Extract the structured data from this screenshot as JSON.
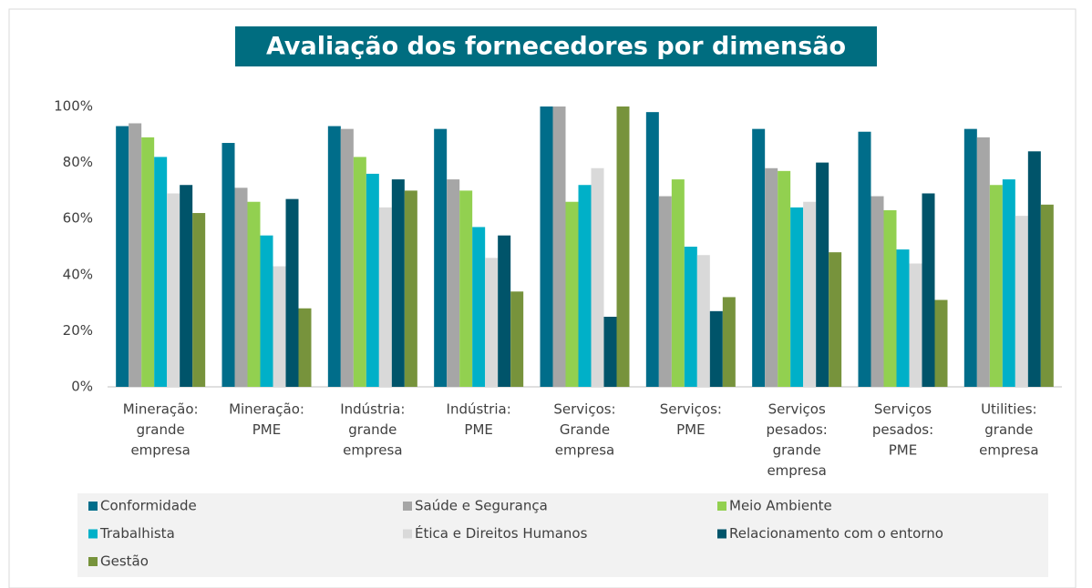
{
  "chart_data": {
    "type": "bar",
    "title": "Avaliação dos fornecedores por dimensão",
    "categories": [
      [
        "Mineração:",
        "grande",
        "empresa"
      ],
      [
        "Mineração:",
        "PME"
      ],
      [
        "Indústria:",
        "grande",
        "empresa"
      ],
      [
        "Indústria:",
        "PME"
      ],
      [
        "Serviços:",
        "Grande",
        "empresa"
      ],
      [
        "Serviços:",
        "PME"
      ],
      [
        "Serviços",
        "pesados:",
        "grande",
        "empresa"
      ],
      [
        "Serviços",
        "pesados:",
        "PME"
      ],
      [
        "Utilities:",
        "grande",
        "empresa"
      ]
    ],
    "series": [
      {
        "name": "Conformidade",
        "color": "#006d8a",
        "values": [
          93,
          87,
          93,
          92,
          100,
          98,
          92,
          91,
          92
        ]
      },
      {
        "name": "Saúde e Segurança",
        "color": "#a6a6a6",
        "values": [
          94,
          71,
          92,
          74,
          100,
          68,
          78,
          68,
          89
        ]
      },
      {
        "name": "Meio Ambiente",
        "color": "#92d050",
        "values": [
          89,
          66,
          82,
          70,
          66,
          74,
          77,
          63,
          72
        ]
      },
      {
        "name": "Trabalhista",
        "color": "#00b0c8",
        "values": [
          82,
          54,
          76,
          57,
          72,
          50,
          64,
          49,
          74
        ]
      },
      {
        "name": "Ética e Direitos Humanos",
        "color": "#d9d9d9",
        "values": [
          69,
          43,
          64,
          46,
          78,
          47,
          66,
          44,
          61
        ]
      },
      {
        "name": "Relacionamento com o entorno",
        "color": "#00546a",
        "values": [
          72,
          67,
          74,
          54,
          25,
          27,
          80,
          69,
          84
        ]
      },
      {
        "name": "Gestão",
        "color": "#77933c",
        "values": [
          62,
          28,
          70,
          34,
          100,
          32,
          48,
          31,
          65
        ]
      }
    ],
    "ylim": [
      0,
      100
    ],
    "yticks": [
      {
        "value": 0,
        "label": "0%"
      },
      {
        "value": 20,
        "label": "20%"
      },
      {
        "value": 40,
        "label": "40%"
      },
      {
        "value": 60,
        "label": "60%"
      },
      {
        "value": 80,
        "label": "80%"
      },
      {
        "value": 100,
        "label": "100%"
      }
    ],
    "grid": false,
    "legend": "bottom"
  }
}
